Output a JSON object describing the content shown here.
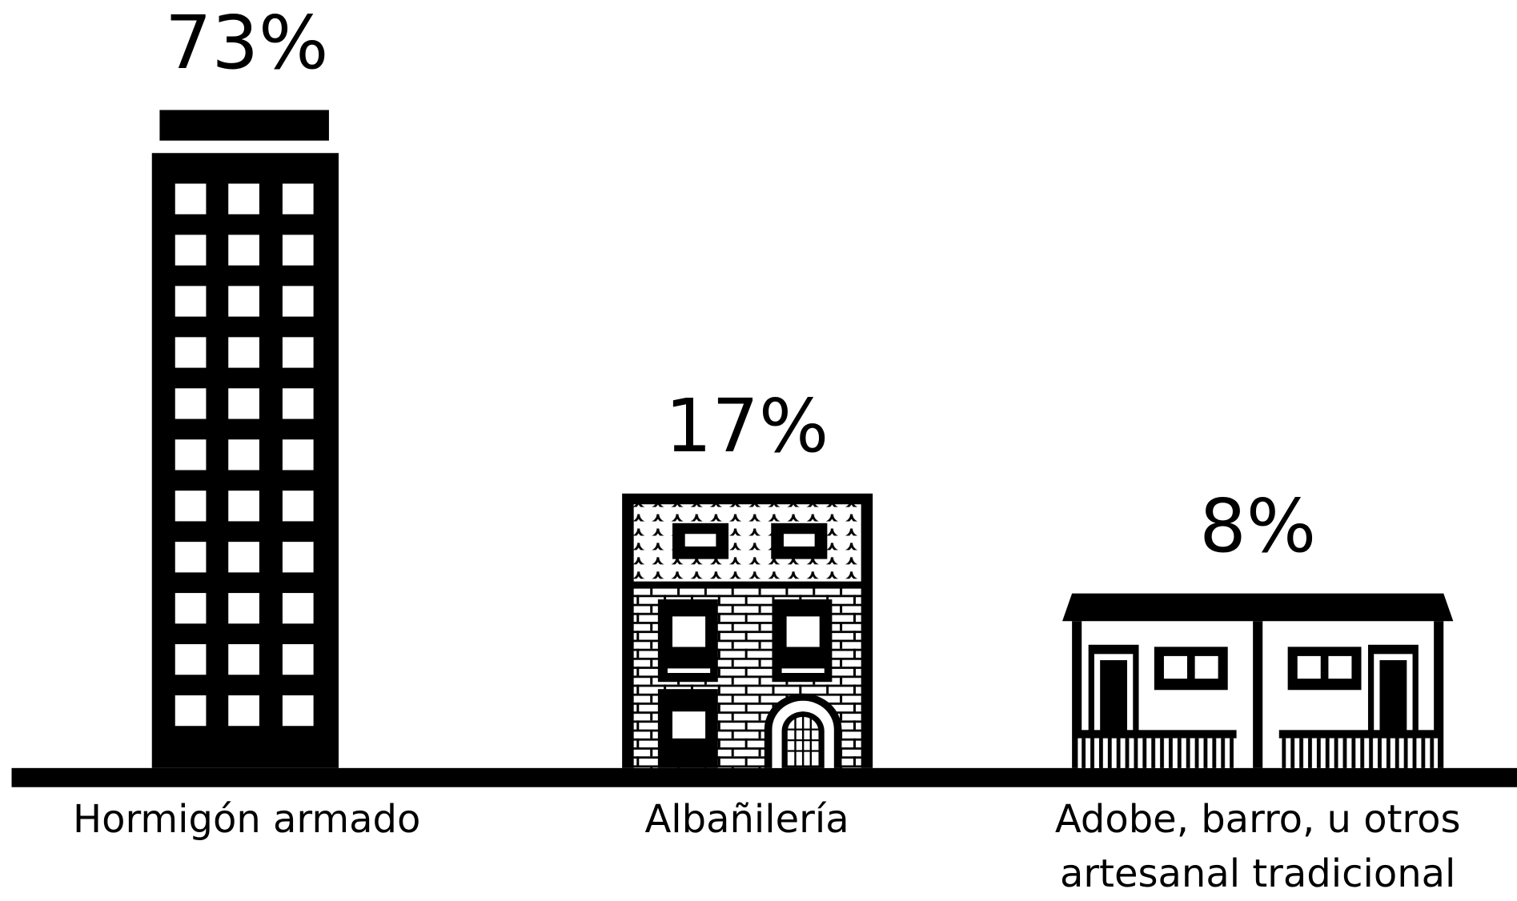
{
  "chart_data": {
    "type": "pictograph",
    "categories": [
      "Hormigón armado",
      "Albañilería",
      "Adobe, barro, u otros artesanal tradicional"
    ],
    "values": [
      73,
      17,
      8
    ],
    "value_labels": [
      "73%",
      "17%",
      "8%"
    ],
    "color": "#000000"
  }
}
